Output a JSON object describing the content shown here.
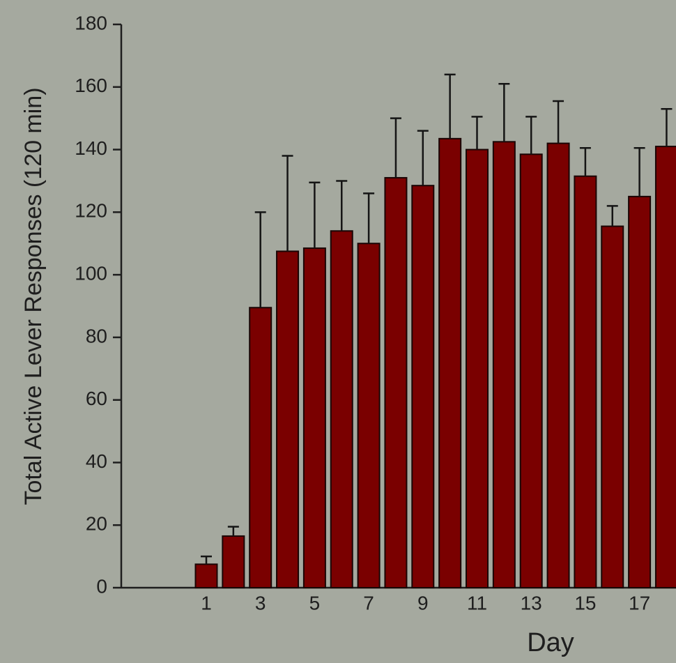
{
  "chart_data": {
    "type": "bar",
    "title": "",
    "xlabel": "Day",
    "ylabel": "Total Active Lever Responses (120 min)",
    "ylim": [
      0,
      180
    ],
    "yticks": [
      0,
      20,
      40,
      60,
      80,
      100,
      120,
      140,
      160,
      180
    ],
    "x_tick_labels": [
      "1",
      "3",
      "5",
      "7",
      "9",
      "11",
      "13",
      "15",
      "17"
    ],
    "categories": [
      "1",
      "2",
      "3",
      "4",
      "5",
      "6",
      "7",
      "8",
      "9",
      "10",
      "11",
      "12",
      "13",
      "14",
      "15",
      "16",
      "17",
      "18"
    ],
    "values": [
      7.5,
      16.5,
      89.5,
      107.5,
      108.5,
      114,
      110,
      131,
      128.5,
      143.5,
      140,
      142.5,
      138.5,
      142,
      131.5,
      115.5,
      125,
      141
    ],
    "errors": [
      2.5,
      3,
      30.5,
      30.5,
      21,
      16,
      16,
      19,
      17.5,
      20.5,
      10.5,
      18.5,
      12,
      13.5,
      9,
      6.5,
      15.5,
      12
    ],
    "bar_color": "#7a0000",
    "grid": false,
    "legend": "none"
  }
}
